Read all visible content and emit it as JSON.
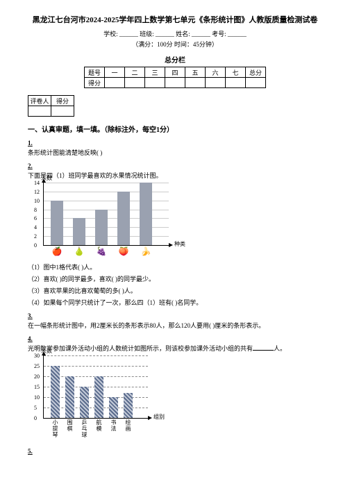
{
  "header": {
    "title": "黑龙江七台河市2024-2025学年四上数学第七单元《条形统计图》人教版质量检测试卷",
    "info": "学校: ______ 班级: ______ 姓名: ______ 考号: ______",
    "sub": "（满分：100分 时间：45分钟）",
    "scoreTableTitle": "总分栏"
  },
  "scoreTable": {
    "row1": [
      "题号",
      "一",
      "二",
      "三",
      "四",
      "五",
      "六",
      "七",
      "总分"
    ],
    "row2Head": "得分"
  },
  "smallTable": {
    "c1": "评卷人",
    "c2": "得分"
  },
  "section1": {
    "head": "一、认真审题，填一填。（除标注外，每空1分）"
  },
  "q1": {
    "num": "1.",
    "text": "条形统计图能清楚地反映(             )"
  },
  "q2": {
    "num": "2.",
    "text": "下面是四（1）班同学最喜欢的水果情况统计图。",
    "chart": {
      "width": 180,
      "height": 90,
      "yAxisLabel": "人数",
      "xAxisLabel": "种类",
      "yTicks": [
        0,
        2,
        4,
        6,
        8,
        10,
        12,
        14
      ],
      "yMax": 14,
      "bars": [
        {
          "value": 10,
          "icon": "apple"
        },
        {
          "value": 6,
          "icon": "pear"
        },
        {
          "value": 8,
          "icon": "grape"
        },
        {
          "value": 12,
          "icon": "other"
        },
        {
          "value": 14,
          "icon": "banana"
        }
      ],
      "barColor": "#9aa1b0",
      "gridColor": "#cccccc",
      "barWidth": 18,
      "barGap": 14
    },
    "sub1": "（1）图中1格代表(      )人。",
    "sub2": "（2）喜欢(     )的同学最多，喜欢(     )的同学最少。",
    "sub3": "（3）喜欢苹果的比喜欢葡萄的多(     )人。",
    "sub4": "（4）如果每个同学只统计了一次，那么四（1）班有( )名同学。"
  },
  "q3": {
    "num": "3.",
    "text": "在一幅条形统计图中，用2厘米长的条形表示80人，那么120人要用( )厘米的条形表示。"
  },
  "q4": {
    "num": "4.",
    "text_a": "光明数学参加课外活动小组的人数统计如图所示，则该校参加课外活动小组的共有",
    "text_b": "人。",
    "chart": {
      "width": 150,
      "height": 90,
      "yAxisLabel": "人数",
      "xAxisLabel": "组别",
      "yTicks": [
        0,
        5,
        10,
        15,
        20,
        25,
        30
      ],
      "yMax": 30,
      "bars": [
        {
          "label": "小提琴",
          "value": 25
        },
        {
          "label": "围棋",
          "value": 20
        },
        {
          "label": "乒乓球",
          "value": 15
        },
        {
          "label": "航模",
          "value": 20
        },
        {
          "label": "书法",
          "value": 10
        },
        {
          "label": "绘画",
          "value": 12
        }
      ],
      "barWidth": 13,
      "barGap": 8
    }
  },
  "q5": {
    "num": "5."
  }
}
